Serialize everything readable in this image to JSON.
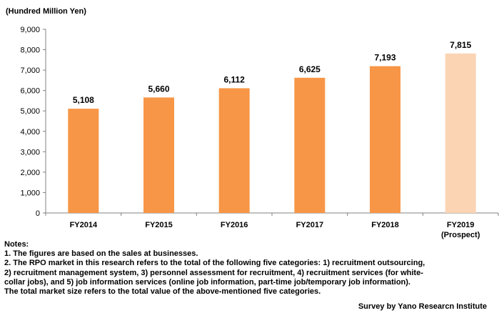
{
  "chart_data": {
    "type": "bar",
    "unit_label": "(Hundred Million Yen)",
    "categories": [
      "FY2014",
      "FY2015",
      "FY2016",
      "FY2017",
      "FY2018",
      "FY2019"
    ],
    "category_sublabels": [
      "",
      "",
      "",
      "",
      "",
      "(Prospect)"
    ],
    "values": [
      5108,
      5660,
      6112,
      6625,
      7193,
      7815
    ],
    "data_labels": [
      "5,108",
      "5,660",
      "6,112",
      "6,625",
      "7,193",
      "7,815"
    ],
    "y_ticks": [
      0,
      1000,
      2000,
      3000,
      4000,
      5000,
      6000,
      7000,
      8000,
      9000
    ],
    "y_tick_labels": [
      "0",
      "1,000",
      "2,000",
      "3,000",
      "4,000",
      "5,000",
      "6,000",
      "7,000",
      "8,000",
      "9,000"
    ],
    "ylim": [
      0,
      9000
    ],
    "grid": false,
    "legend": "none",
    "colors": {
      "bar": "#F79646",
      "bar_prospect": "#FBD4B4",
      "axis": "#808080"
    }
  },
  "notes": {
    "title": "Notes:",
    "lines": [
      "1. The  figures are based on the sales at businesses.",
      "2. The RPO market in this research refers to the total of the following five categories: 1) recruitment outsourcing,",
      "2) recruitment management system, 3) personnel assessment for recruitment, 4) recruitment services (for white-",
      "collar jobs), and 5) job information services (online job information,  part-time job/temporary job information).",
      "The total market size refers to the total value of the above-mentioned five categories."
    ]
  },
  "source": "Survey by Yano Researcn Institute"
}
